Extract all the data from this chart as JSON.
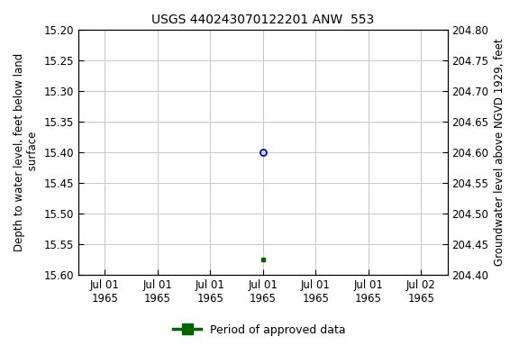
{
  "title": "USGS 440243070122201 ANW  553",
  "ylabel_left": "Depth to water level, feet below land\n surface",
  "ylabel_right": "Groundwater level above NGVD 1929, feet",
  "ylim_left": [
    15.2,
    15.6
  ],
  "ylim_right_bottom": 204.4,
  "ylim_right_top": 204.8,
  "yticks_left": [
    15.2,
    15.25,
    15.3,
    15.35,
    15.4,
    15.45,
    15.5,
    15.55,
    15.6
  ],
  "yticks_right": [
    204.4,
    204.45,
    204.5,
    204.55,
    204.6,
    204.65,
    204.7,
    204.75,
    204.8
  ],
  "ytick_labels_left": [
    "15.20",
    "15.25",
    "15.30",
    "15.35",
    "15.40",
    "15.45",
    "15.50",
    "15.55",
    "15.60"
  ],
  "ytick_labels_right": [
    "204.40",
    "204.45",
    "204.50",
    "204.55",
    "204.60",
    "204.65",
    "204.70",
    "204.75",
    "204.80"
  ],
  "xtick_labels_line1": [
    "Jul 01",
    "Jul 01",
    "Jul 01",
    "Jul 01",
    "Jul 01",
    "Jul 01",
    "Jul 02"
  ],
  "xtick_labels_line2": [
    "1965",
    "1965",
    "1965",
    "1965",
    "1965",
    "1965",
    "1965"
  ],
  "xlim_min": -0.5,
  "xlim_max": 6.5,
  "xtick_positions": [
    0,
    1,
    2,
    3,
    4,
    5,
    6
  ],
  "data_blue_x": 3,
  "data_blue_y": 15.4,
  "data_green_x": 3,
  "data_green_y": 15.575,
  "blue_color": "#0000cc",
  "green_color": "#006400",
  "bg_color": "#ffffff",
  "grid_color": "#c8c8c8",
  "legend_label": "Period of approved data",
  "title_fontsize": 10,
  "axis_label_fontsize": 8.5,
  "tick_fontsize": 8.5,
  "legend_fontsize": 9
}
